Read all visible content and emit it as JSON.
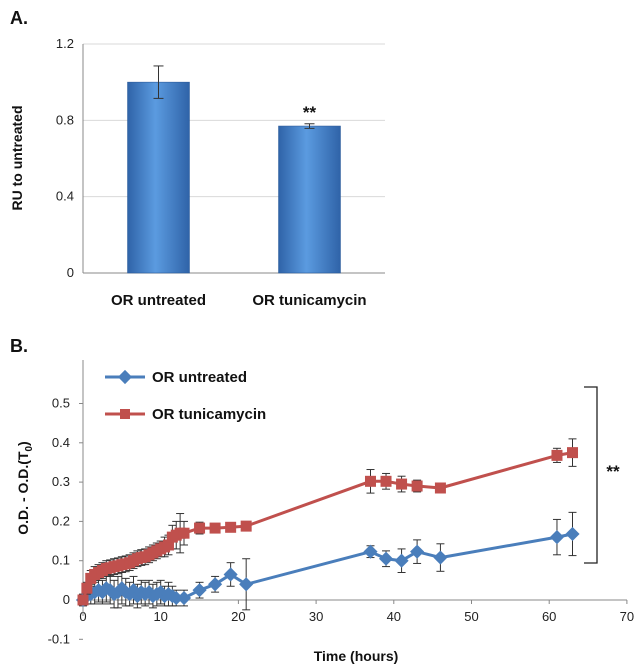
{
  "panels": {
    "a_label": "A.",
    "b_label": "B."
  },
  "chart_data": [
    {
      "type": "bar",
      "categories": [
        "OR untreated",
        "OR tunicamycin"
      ],
      "values": [
        1.0,
        0.77
      ],
      "errors": [
        0.085,
        0.012
      ],
      "annotations": [
        "",
        "**"
      ],
      "title": "",
      "xlabel": "",
      "ylabel": "RU to untreated",
      "ylim": [
        0,
        1.2
      ],
      "yticks": [
        0,
        0.4,
        0.8,
        1.2
      ],
      "ytick_labels": [
        "0",
        "0.4",
        "0.8",
        "1.2"
      ],
      "grid": true,
      "color": "#4a86d0"
    },
    {
      "type": "line",
      "title": "",
      "xlabel": "Time (hours)",
      "ylabel": "O.D. - O.D.(T",
      "ylabel_subscript": "0",
      "ylabel_suffix": ")",
      "xlim": [
        -2,
        70
      ],
      "ylim": [
        -0.1,
        0.5
      ],
      "xticks": [
        0,
        10,
        20,
        30,
        40,
        50,
        60,
        70
      ],
      "xtick_labels": [
        "0",
        "10",
        "20",
        "30",
        "40",
        "50",
        "60",
        "70"
      ],
      "yticks": [
        -0.1,
        0,
        0.1,
        0.2,
        0.3,
        0.4,
        0.5
      ],
      "ytick_labels": [
        "-0.1",
        "0",
        "0.1",
        "0.2",
        "0.3",
        "0.4",
        "0.5"
      ],
      "grid": false,
      "legend": "top-left",
      "significance": "**",
      "series": [
        {
          "name": "OR untreated",
          "color": "#4a7ebb",
          "marker": "diamond",
          "points": [
            {
              "x": 0.0,
              "y": 0.0,
              "err": 0.015
            },
            {
              "x": 0.5,
              "y": 0.01,
              "err": 0.02
            },
            {
              "x": 1.0,
              "y": 0.015,
              "err": 0.025
            },
            {
              "x": 1.5,
              "y": 0.02,
              "err": 0.03
            },
            {
              "x": 2.0,
              "y": 0.025,
              "err": 0.03
            },
            {
              "x": 2.5,
              "y": 0.02,
              "err": 0.03
            },
            {
              "x": 3.0,
              "y": 0.03,
              "err": 0.035
            },
            {
              "x": 3.5,
              "y": 0.025,
              "err": 0.035
            },
            {
              "x": 4.0,
              "y": 0.015,
              "err": 0.035
            },
            {
              "x": 4.5,
              "y": 0.02,
              "err": 0.04
            },
            {
              "x": 5.0,
              "y": 0.03,
              "err": 0.04
            },
            {
              "x": 5.5,
              "y": 0.02,
              "err": 0.035
            },
            {
              "x": 6.0,
              "y": 0.015,
              "err": 0.03
            },
            {
              "x": 6.5,
              "y": 0.025,
              "err": 0.035
            },
            {
              "x": 7.0,
              "y": 0.01,
              "err": 0.03
            },
            {
              "x": 7.5,
              "y": 0.02,
              "err": 0.03
            },
            {
              "x": 8.0,
              "y": 0.015,
              "err": 0.03
            },
            {
              "x": 8.5,
              "y": 0.02,
              "err": 0.03
            },
            {
              "x": 9.0,
              "y": 0.01,
              "err": 0.03
            },
            {
              "x": 9.5,
              "y": 0.015,
              "err": 0.03
            },
            {
              "x": 10.0,
              "y": 0.02,
              "err": 0.03
            },
            {
              "x": 10.5,
              "y": 0.01,
              "err": 0.025
            },
            {
              "x": 11.0,
              "y": 0.015,
              "err": 0.03
            },
            {
              "x": 11.5,
              "y": 0.01,
              "err": 0.025
            },
            {
              "x": 12.0,
              "y": 0.005,
              "err": 0.02
            },
            {
              "x": 13.0,
              "y": 0.005,
              "err": 0.02
            },
            {
              "x": 15.0,
              "y": 0.025,
              "err": 0.02
            },
            {
              "x": 17.0,
              "y": 0.04,
              "err": 0.02
            },
            {
              "x": 19.0,
              "y": 0.065,
              "err": 0.03
            },
            {
              "x": 21.0,
              "y": 0.04,
              "err": 0.065
            },
            {
              "x": 37.0,
              "y": 0.123,
              "err": 0.015
            },
            {
              "x": 39.0,
              "y": 0.105,
              "err": 0.02
            },
            {
              "x": 41.0,
              "y": 0.1,
              "err": 0.03
            },
            {
              "x": 43.0,
              "y": 0.123,
              "err": 0.03
            },
            {
              "x": 46.0,
              "y": 0.108,
              "err": 0.035
            },
            {
              "x": 61.0,
              "y": 0.16,
              "err": 0.045
            },
            {
              "x": 63.0,
              "y": 0.168,
              "err": 0.055
            }
          ]
        },
        {
          "name": "OR tunicamycin",
          "color": "#c0504d",
          "marker": "square",
          "points": [
            {
              "x": 0.0,
              "y": 0.0,
              "err": 0.01
            },
            {
              "x": 0.5,
              "y": 0.03,
              "err": 0.015
            },
            {
              "x": 1.0,
              "y": 0.055,
              "err": 0.02
            },
            {
              "x": 1.5,
              "y": 0.065,
              "err": 0.02
            },
            {
              "x": 2.0,
              "y": 0.07,
              "err": 0.02
            },
            {
              "x": 2.5,
              "y": 0.075,
              "err": 0.02
            },
            {
              "x": 3.0,
              "y": 0.08,
              "err": 0.02
            },
            {
              "x": 3.5,
              "y": 0.082,
              "err": 0.02
            },
            {
              "x": 4.0,
              "y": 0.085,
              "err": 0.02
            },
            {
              "x": 4.5,
              "y": 0.087,
              "err": 0.02
            },
            {
              "x": 5.0,
              "y": 0.09,
              "err": 0.02
            },
            {
              "x": 5.5,
              "y": 0.092,
              "err": 0.02
            },
            {
              "x": 6.0,
              "y": 0.095,
              "err": 0.02
            },
            {
              "x": 6.5,
              "y": 0.1,
              "err": 0.02
            },
            {
              "x": 7.0,
              "y": 0.105,
              "err": 0.02
            },
            {
              "x": 7.5,
              "y": 0.108,
              "err": 0.02
            },
            {
              "x": 8.0,
              "y": 0.11,
              "err": 0.02
            },
            {
              "x": 8.5,
              "y": 0.115,
              "err": 0.02
            },
            {
              "x": 9.0,
              "y": 0.12,
              "err": 0.02
            },
            {
              "x": 9.5,
              "y": 0.125,
              "err": 0.02
            },
            {
              "x": 10.0,
              "y": 0.13,
              "err": 0.02
            },
            {
              "x": 10.5,
              "y": 0.135,
              "err": 0.025
            },
            {
              "x": 11.0,
              "y": 0.14,
              "err": 0.025
            },
            {
              "x": 11.5,
              "y": 0.16,
              "err": 0.03
            },
            {
              "x": 12.0,
              "y": 0.165,
              "err": 0.035
            },
            {
              "x": 12.5,
              "y": 0.17,
              "err": 0.05
            },
            {
              "x": 13.0,
              "y": 0.17,
              "err": 0.03
            },
            {
              "x": 15.0,
              "y": 0.183,
              "err": 0.015
            },
            {
              "x": 17.0,
              "y": 0.183,
              "err": 0.01
            },
            {
              "x": 19.0,
              "y": 0.185,
              "err": 0.01
            },
            {
              "x": 21.0,
              "y": 0.188,
              "err": 0.01
            },
            {
              "x": 37.0,
              "y": 0.302,
              "err": 0.03
            },
            {
              "x": 39.0,
              "y": 0.302,
              "err": 0.02
            },
            {
              "x": 41.0,
              "y": 0.295,
              "err": 0.02
            },
            {
              "x": 43.0,
              "y": 0.29,
              "err": 0.015
            },
            {
              "x": 46.0,
              "y": 0.285,
              "err": 0.01
            },
            {
              "x": 61.0,
              "y": 0.368,
              "err": 0.018
            },
            {
              "x": 63.0,
              "y": 0.375,
              "err": 0.035
            }
          ]
        }
      ]
    }
  ]
}
